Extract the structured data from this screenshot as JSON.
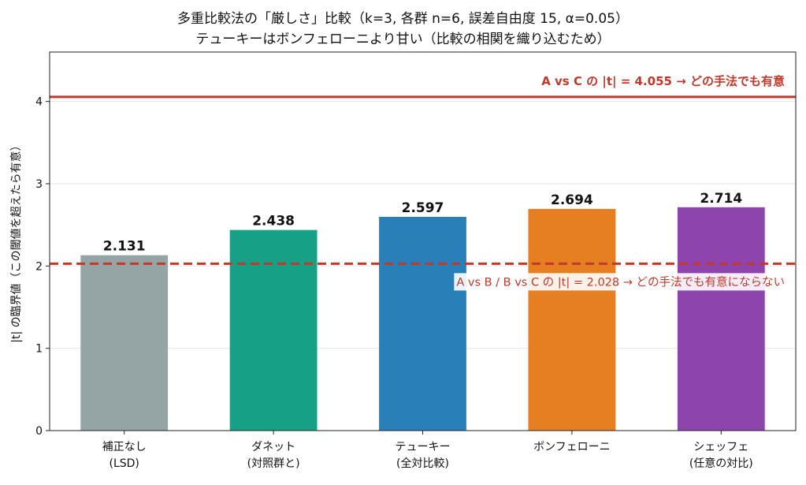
{
  "chart_data": {
    "type": "bar",
    "title_lines": [
      "多重比較法の「厳しさ」比較（k=3, 各群 n=6, 誤差自由度 15, α=0.05）",
      "テューキーはボンフェローニより甘い（比較の相関を織り込むため）"
    ],
    "xlabel": "",
    "ylabel": "|t| の臨界値（この閾値を超えたら有意）",
    "ylim": [
      0,
      4.6
    ],
    "yticks": [
      0,
      1,
      2,
      3,
      4
    ],
    "grid": true,
    "grid_axis": "y",
    "categories": [
      [
        "補正なし",
        "(LSD)"
      ],
      [
        "ダネット",
        "(対照群と)"
      ],
      [
        "テューキー",
        "(全対比較)"
      ],
      [
        "ボンフェローニ"
      ],
      [
        "シェッフェ",
        "(任意の対比)"
      ]
    ],
    "values": [
      2.131,
      2.438,
      2.597,
      2.694,
      2.714
    ],
    "value_labels": [
      "2.131",
      "2.438",
      "2.597",
      "2.694",
      "2.714"
    ],
    "bar_colors": [
      "#95a5a6",
      "#16a085",
      "#2980b9",
      "#e67e22",
      "#8e44ad"
    ],
    "reference_lines": [
      {
        "value": 4.055,
        "style": "solid",
        "color": "#c0392b",
        "label": "A vs C の |t| = 4.055 → どの手法でも有意",
        "label_weight": "bold"
      },
      {
        "value": 2.028,
        "style": "dashed",
        "color": "#c0392b",
        "label": "A vs B / B vs C の |t| = 2.028 → どの手法でも有意にならない",
        "label_weight": "normal"
      }
    ]
  }
}
